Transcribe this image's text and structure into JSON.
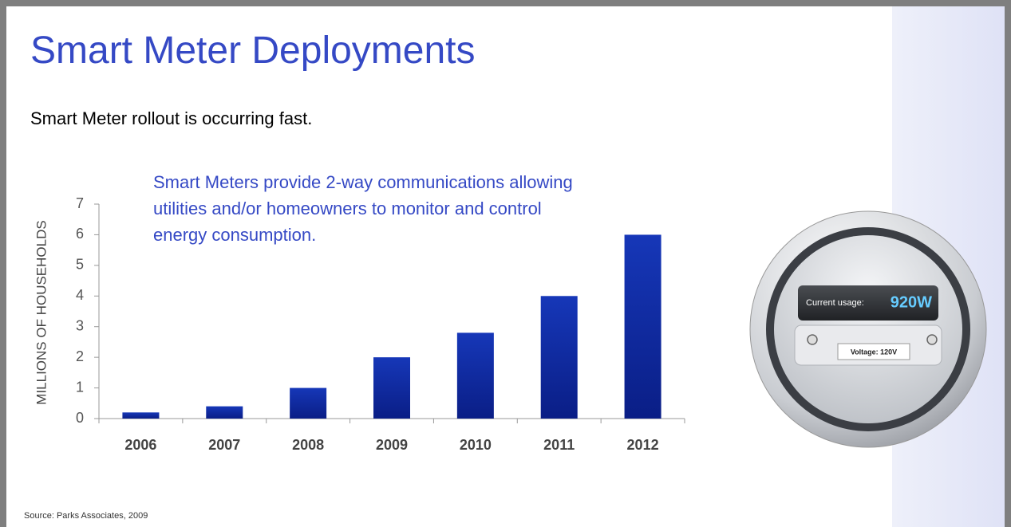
{
  "title": "Smart Meter Deployments",
  "subtitle": "Smart Meter rollout is occurring fast.",
  "source": "Source:  Parks Associates, 2009",
  "meter": {
    "usage_label": "Current usage:",
    "usage_value": "920W",
    "voltage": "Voltage: 120V"
  },
  "chart_data": {
    "type": "bar",
    "y_label": "MILLIONS OF HOUSEHOLDS",
    "annotation": "Smart Meters provide 2-way communications allowing utilities and/or homeowners to monitor and control energy consumption.",
    "categories": [
      "2006",
      "2007",
      "2008",
      "2009",
      "2010",
      "2011",
      "2012"
    ],
    "values": [
      0.2,
      0.4,
      1,
      2,
      2.8,
      4,
      6
    ],
    "color": "#1637b8",
    "ylim": [
      0,
      7
    ],
    "yticks": [
      0,
      1,
      2,
      3,
      4,
      5,
      6,
      7
    ]
  }
}
